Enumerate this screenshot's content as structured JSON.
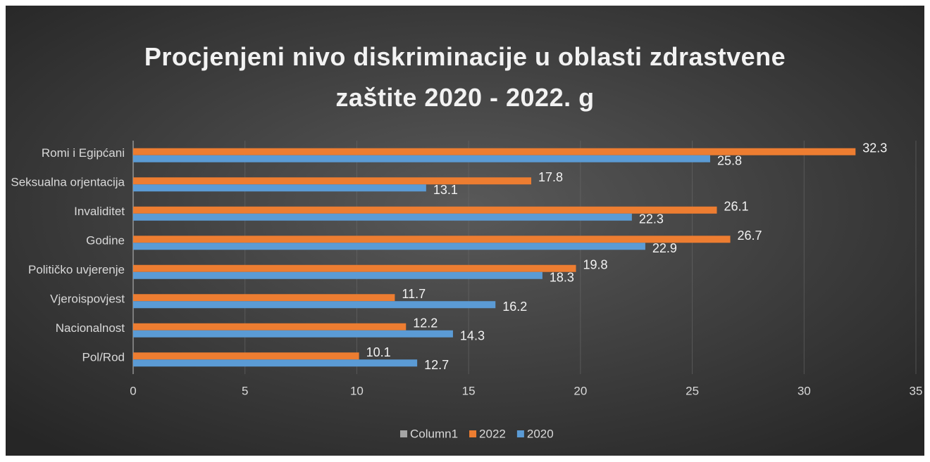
{
  "chart_data": {
    "type": "hbar",
    "title": "Procjenjeni nivo diskriminacije u oblasti zdrastvene zaštite 2020 - 2022. g",
    "categories": [
      "Romi i Egipćani",
      "Seksualna orjentacija",
      "Invaliditet",
      "Godine",
      "Političko uvjerenje",
      "Vjeroispovjest",
      "Nacionalnost",
      "Pol/Rod"
    ],
    "series": [
      {
        "name": "Column1",
        "color": "#a5a5a5",
        "values": [
          null,
          null,
          null,
          null,
          null,
          null,
          null,
          null
        ]
      },
      {
        "name": "2022",
        "color": "#ed7d31",
        "values": [
          32.3,
          17.8,
          26.1,
          26.7,
          19.8,
          11.7,
          12.2,
          10.1
        ]
      },
      {
        "name": "2020",
        "color": "#5b9bd5",
        "values": [
          25.8,
          13.1,
          22.3,
          22.9,
          18.3,
          16.2,
          14.3,
          12.7
        ]
      }
    ],
    "xlim": [
      0,
      35
    ],
    "xticks": [
      0,
      5,
      10,
      15,
      20,
      25,
      30,
      35
    ],
    "grid": true,
    "legend": "bottom"
  }
}
